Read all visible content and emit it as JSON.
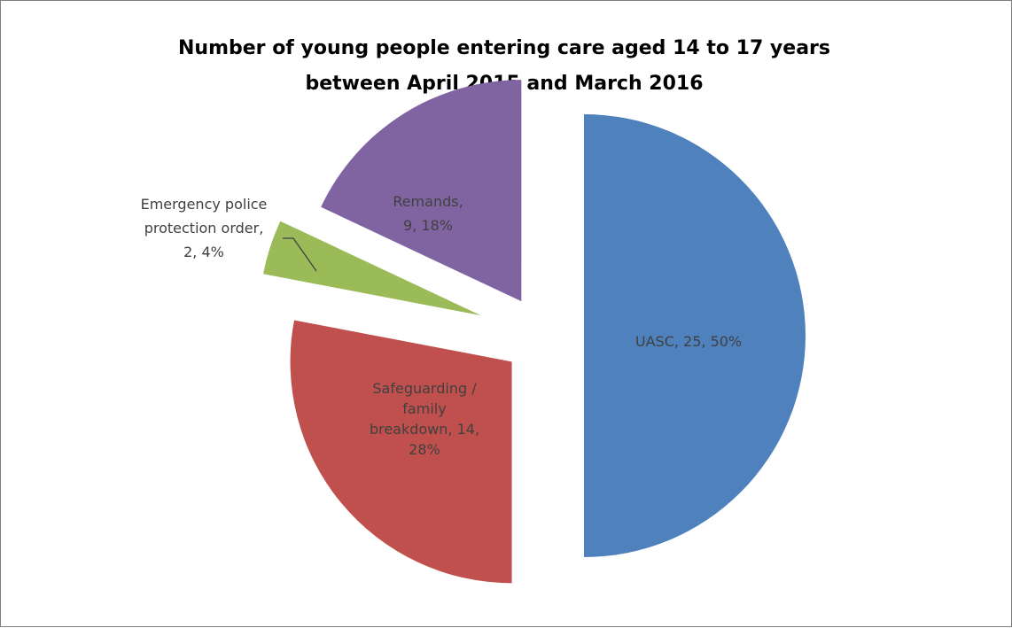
{
  "chart_data": {
    "type": "pie",
    "title": "Number of young people entering care aged 14 to 17 years between April 2015 and March 2016",
    "title_lines": [
      "Number of young people entering care aged 14 to 17 years",
      "between April 2015 and March 2016"
    ],
    "exploded": true,
    "legend": "none",
    "slices": [
      {
        "category": "UASC",
        "value": 25,
        "percent": 50,
        "color": "#4f81bd",
        "label_lines": [
          "UASC, 25, 50%"
        ]
      },
      {
        "category": "Safeguarding / family breakdown",
        "value": 14,
        "percent": 28,
        "color": "#c0504d",
        "label_lines": [
          "Safeguarding /",
          "family",
          "breakdown, 14,",
          "28%"
        ]
      },
      {
        "category": "Emergency police protection order",
        "value": 2,
        "percent": 4,
        "color": "#9bbb59",
        "label_lines": [
          "Emergency police",
          "protection order,",
          "2, 4%"
        ]
      },
      {
        "category": "Remands",
        "value": 9,
        "percent": 18,
        "color": "#8064a2",
        "label_lines": [
          "Remands,",
          "9, 18%"
        ]
      }
    ]
  }
}
